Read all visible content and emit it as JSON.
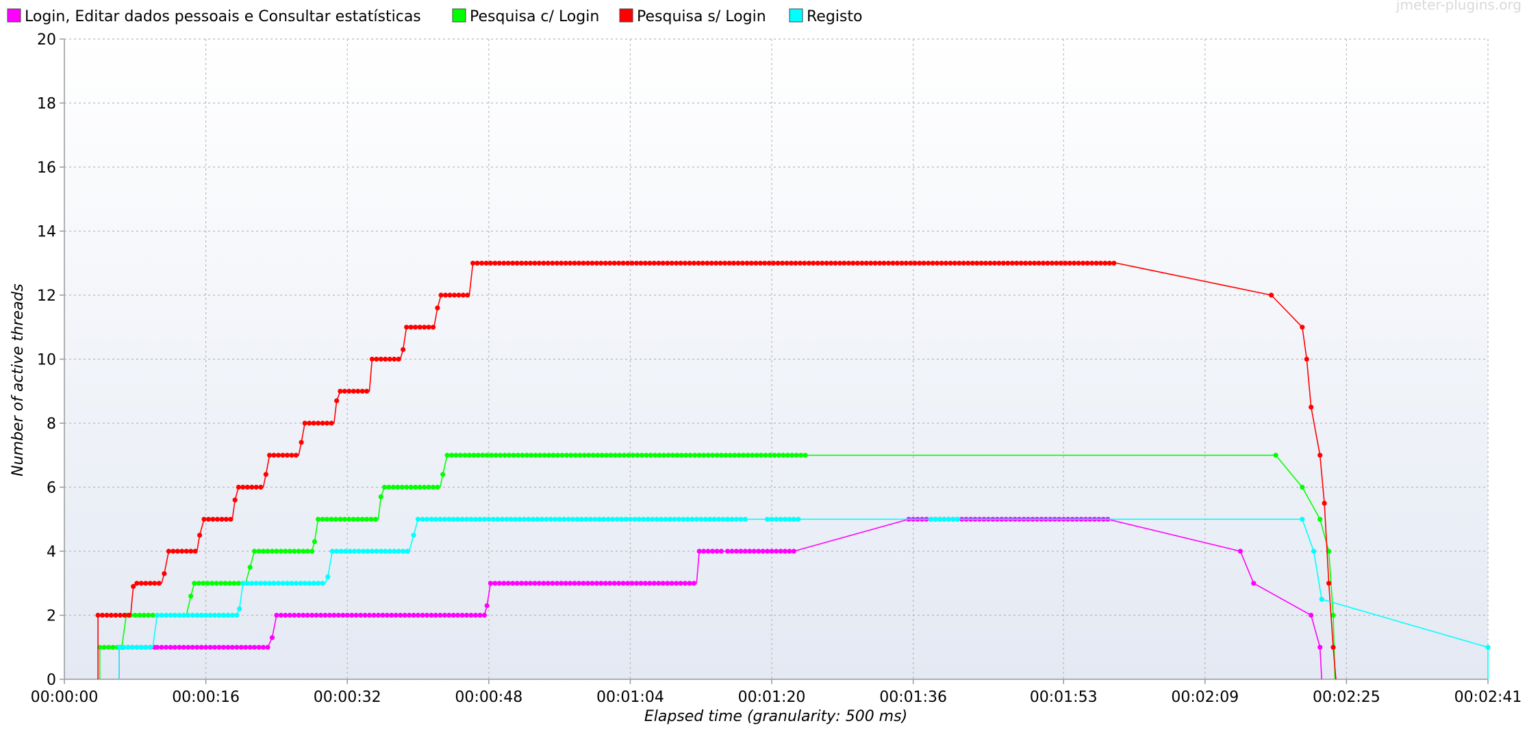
{
  "chart_data": {
    "type": "line",
    "title": "",
    "watermark": "jmeter-plugins.org",
    "xlabel": "Elapsed time (granularity: 500 ms)",
    "ylabel": "Number of active threads",
    "xlim": [
      0,
      161
    ],
    "ylim": [
      0,
      20
    ],
    "x_unit": "seconds",
    "x_ticks": [
      {
        "value": 0,
        "label": "00:00:00"
      },
      {
        "value": 16,
        "label": "00:00:16"
      },
      {
        "value": 32,
        "label": "00:00:32"
      },
      {
        "value": 48,
        "label": "00:00:48"
      },
      {
        "value": 64,
        "label": "00:01:04"
      },
      {
        "value": 80,
        "label": "00:01:20"
      },
      {
        "value": 96,
        "label": "00:01:36"
      },
      {
        "value": 113,
        "label": "00:01:53"
      },
      {
        "value": 129,
        "label": "00:02:09"
      },
      {
        "value": 145,
        "label": "00:02:25"
      },
      {
        "value": 161,
        "label": "00:02:41"
      }
    ],
    "y_ticks": [
      0,
      2,
      4,
      6,
      8,
      10,
      12,
      14,
      16,
      18,
      20
    ],
    "grid": true,
    "legend_position": "top-left",
    "series": [
      {
        "name": "Login, Editar dados pessoais e Consultar estatísticas",
        "color": "#ff00ff",
        "points": [
          [
            6.2,
            0
          ],
          [
            6.2,
            1
          ],
          [
            10,
            1
          ],
          [
            10.5,
            1
          ],
          [
            23,
            1
          ],
          [
            23.5,
            1.3
          ],
          [
            24,
            2
          ],
          [
            47.5,
            2
          ],
          [
            47.8,
            2.3
          ],
          [
            48.2,
            3
          ],
          [
            71.5,
            3
          ],
          [
            71.8,
            4
          ],
          [
            74.5,
            4
          ],
          [
            75,
            4
          ],
          [
            80.5,
            4
          ],
          [
            81,
            4
          ],
          [
            82.5,
            4
          ],
          [
            95.5,
            5
          ],
          [
            118,
            5
          ],
          [
            133,
            4
          ],
          [
            134.5,
            3
          ],
          [
            141,
            2
          ],
          [
            142,
            1
          ],
          [
            142.2,
            0
          ]
        ],
        "dot_segments": [
          [
            6.2,
            10.5,
            1
          ],
          [
            10.5,
            23,
            1
          ],
          [
            24,
            47.5,
            2
          ],
          [
            48.2,
            71.5,
            3
          ],
          [
            71.8,
            74.5,
            4
          ],
          [
            75,
            80.5,
            4
          ],
          [
            81,
            82.5,
            4
          ],
          [
            95.5,
            118,
            5
          ]
        ],
        "extra_markers": [
          [
            23.5,
            1.3
          ],
          [
            47.8,
            2.3
          ],
          [
            133,
            4
          ],
          [
            134.5,
            3
          ],
          [
            141,
            2
          ],
          [
            142,
            1
          ]
        ]
      },
      {
        "name": "Pesquisa c/ Login",
        "color": "#00ff00",
        "points": [
          [
            4,
            0
          ],
          [
            4,
            1
          ],
          [
            6.5,
            1
          ],
          [
            7,
            2
          ],
          [
            13.8,
            2
          ],
          [
            14.3,
            2.6
          ],
          [
            14.7,
            3
          ],
          [
            20.5,
            3
          ],
          [
            21,
            3.5
          ],
          [
            21.5,
            4
          ],
          [
            28,
            4
          ],
          [
            28.3,
            4.3
          ],
          [
            28.7,
            5
          ],
          [
            35.5,
            5
          ],
          [
            35.8,
            5.7
          ],
          [
            36.2,
            6
          ],
          [
            42.5,
            6
          ],
          [
            42.8,
            6.4
          ],
          [
            43.3,
            7
          ],
          [
            84,
            7
          ],
          [
            137,
            7
          ],
          [
            140,
            6
          ],
          [
            142,
            5
          ],
          [
            143,
            4
          ],
          [
            143.5,
            2
          ],
          [
            143.7,
            0
          ]
        ],
        "dot_segments": [
          [
            4,
            6.5,
            1
          ],
          [
            7,
            10,
            2
          ],
          [
            14.7,
            20.5,
            3
          ],
          [
            21.5,
            28,
            4
          ],
          [
            28.7,
            35.5,
            5
          ],
          [
            36.2,
            42.5,
            6
          ],
          [
            43.3,
            84,
            7
          ]
        ],
        "extra_markers": [
          [
            14.3,
            2.6
          ],
          [
            21,
            3.5
          ],
          [
            28.3,
            4.3
          ],
          [
            35.8,
            5.7
          ],
          [
            42.8,
            6.4
          ],
          [
            137,
            7
          ],
          [
            140,
            6
          ],
          [
            142,
            5
          ],
          [
            143,
            4
          ],
          [
            143.5,
            2
          ]
        ]
      },
      {
        "name": "Pesquisa s/ Login",
        "color": "#ff0000",
        "points": [
          [
            3.8,
            0
          ],
          [
            3.8,
            2
          ],
          [
            7.5,
            2
          ],
          [
            7.8,
            2.9
          ],
          [
            8.2,
            3
          ],
          [
            11,
            3
          ],
          [
            11.3,
            3.3
          ],
          [
            11.8,
            4
          ],
          [
            15,
            4
          ],
          [
            15.3,
            4.5
          ],
          [
            15.8,
            5
          ],
          [
            19,
            5
          ],
          [
            19.3,
            5.6
          ],
          [
            19.7,
            6
          ],
          [
            22.5,
            6
          ],
          [
            22.8,
            6.4
          ],
          [
            23.2,
            7
          ],
          [
            26.5,
            7
          ],
          [
            26.8,
            7.4
          ],
          [
            27.2,
            8
          ],
          [
            30.5,
            8
          ],
          [
            30.8,
            8.7
          ],
          [
            31.2,
            9
          ],
          [
            34.5,
            9
          ],
          [
            34.8,
            10
          ],
          [
            38,
            10
          ],
          [
            38.3,
            10.3
          ],
          [
            38.7,
            11
          ],
          [
            41.8,
            11
          ],
          [
            42.2,
            11.6
          ],
          [
            42.6,
            12
          ],
          [
            45.8,
            12
          ],
          [
            46.2,
            13
          ],
          [
            119,
            13
          ],
          [
            136.5,
            12
          ],
          [
            140,
            11
          ],
          [
            140.5,
            10
          ],
          [
            141,
            8.5
          ],
          [
            142,
            7
          ],
          [
            142.5,
            5.5
          ],
          [
            143,
            3
          ],
          [
            143.5,
            1
          ],
          [
            143.8,
            0
          ]
        ],
        "dot_segments": [
          [
            3.8,
            7.5,
            2
          ],
          [
            8.2,
            11,
            3
          ],
          [
            11.8,
            15,
            4
          ],
          [
            15.8,
            19,
            5
          ],
          [
            19.7,
            22.5,
            6
          ],
          [
            23.2,
            26.5,
            7
          ],
          [
            27.2,
            30.5,
            8
          ],
          [
            31.2,
            34.5,
            9
          ],
          [
            34.8,
            38,
            10
          ],
          [
            38.7,
            41.8,
            11
          ],
          [
            42.6,
            45.8,
            12
          ],
          [
            46.2,
            119,
            13
          ]
        ],
        "extra_markers": [
          [
            7.8,
            2.9
          ],
          [
            11.3,
            3.3
          ],
          [
            15.3,
            4.5
          ],
          [
            19.3,
            5.6
          ],
          [
            22.8,
            6.4
          ],
          [
            26.8,
            7.4
          ],
          [
            30.8,
            8.7
          ],
          [
            38.3,
            10.3
          ],
          [
            42.2,
            11.6
          ],
          [
            136.5,
            12
          ],
          [
            140,
            11
          ],
          [
            140.5,
            10
          ],
          [
            141,
            8.5
          ],
          [
            142,
            7
          ],
          [
            142.5,
            5.5
          ],
          [
            143,
            3
          ],
          [
            143.5,
            1
          ]
        ]
      },
      {
        "name": "Registo",
        "color": "#00ffff",
        "points": [
          [
            6.2,
            0
          ],
          [
            6.2,
            1
          ],
          [
            10,
            1
          ],
          [
            10.5,
            2
          ],
          [
            19.5,
            2
          ],
          [
            19.8,
            2.2
          ],
          [
            20.2,
            3
          ],
          [
            29.5,
            3
          ],
          [
            29.8,
            3.2
          ],
          [
            30.3,
            4
          ],
          [
            39,
            4
          ],
          [
            39.5,
            4.5
          ],
          [
            40,
            5
          ],
          [
            83,
            5
          ],
          [
            140,
            5
          ],
          [
            141.3,
            4
          ],
          [
            142.2,
            2.5
          ],
          [
            161,
            1
          ],
          [
            161,
            0
          ]
        ],
        "dot_segments": [
          [
            6.2,
            10,
            1
          ],
          [
            10.5,
            19.5,
            2
          ],
          [
            20.2,
            29.5,
            3
          ],
          [
            30.3,
            39,
            4
          ],
          [
            40,
            70.5,
            5
          ],
          [
            71,
            77,
            5
          ],
          [
            79.5,
            83,
            5
          ],
          [
            98,
            101,
            5
          ]
        ],
        "extra_markers": [
          [
            19.8,
            2.2
          ],
          [
            29.8,
            3.2
          ],
          [
            39.5,
            4.5
          ],
          [
            140,
            5
          ],
          [
            141.3,
            4
          ],
          [
            142.2,
            2.5
          ],
          [
            161,
            1
          ]
        ]
      }
    ]
  }
}
